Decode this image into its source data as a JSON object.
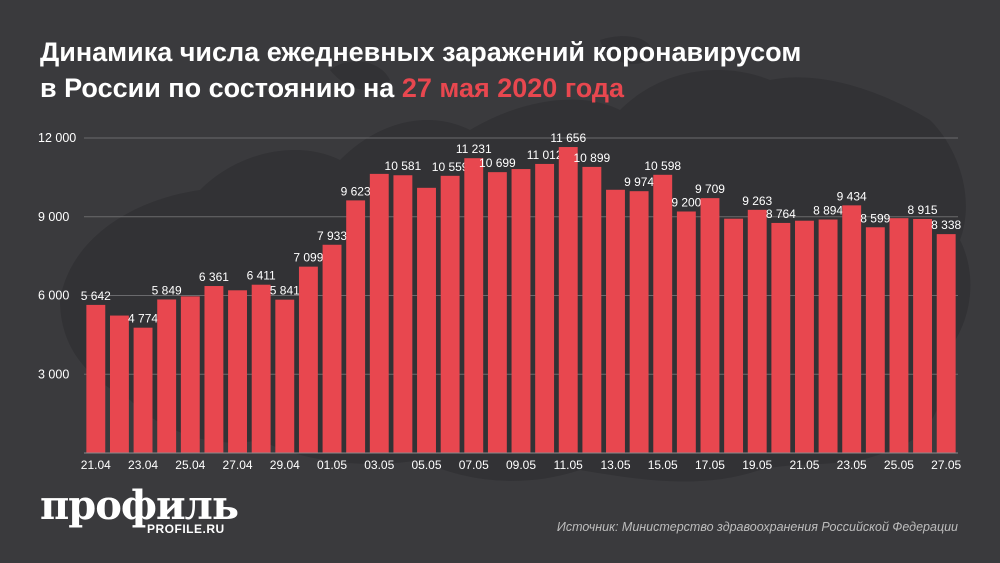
{
  "header": {
    "title_main": "Динамика числа ежедневных заражений коронавирусом",
    "title_line2": "в России по состоянию на ",
    "title_date": "27 мая 2020 года"
  },
  "branding": {
    "logo_text": "профиль",
    "logo_sub": "PROFILE.RU"
  },
  "footer": {
    "source": "Источник: Министерство здравоохранения Российской Федерации"
  },
  "colors": {
    "background": "#3a3a3d",
    "bar": "#e8474f",
    "accent": "#e8474f",
    "gridline": "#6a6a6d",
    "text": "#ffffff"
  },
  "chart_data": {
    "type": "bar",
    "title": "",
    "xlabel": "",
    "ylabel": "",
    "ylim": [
      0,
      12000
    ],
    "yticks": [
      3000,
      6000,
      9000,
      12000
    ],
    "ytick_labels": [
      "3 000",
      "6 000",
      "9 000",
      "12 000"
    ],
    "grid": true,
    "categories": [
      "21.04",
      "22.04",
      "23.04",
      "24.04",
      "25.04",
      "26.04",
      "27.04",
      "28.04",
      "29.04",
      "30.04",
      "01.05",
      "02.05",
      "03.05",
      "04.05",
      "05.05",
      "06.05",
      "07.05",
      "08.05",
      "09.05",
      "10.05",
      "11.05",
      "12.05",
      "13.05",
      "14.05",
      "15.05",
      "16.05",
      "17.05",
      "18.05",
      "19.05",
      "20.05",
      "21.05",
      "22.05",
      "23.05",
      "24.05",
      "25.05",
      "26.05",
      "27.05"
    ],
    "values": [
      5642,
      5236,
      4774,
      5849,
      5966,
      6361,
      6198,
      6411,
      5841,
      7099,
      7933,
      9623,
      10633,
      10581,
      10102,
      10559,
      11231,
      10699,
      10817,
      11012,
      11656,
      10899,
      10028,
      9974,
      10598,
      9200,
      9709,
      8926,
      9263,
      8764,
      8849,
      8894,
      9434,
      8599,
      8946,
      8915,
      8338
    ],
    "labels": [
      "5 642",
      "",
      "4 774",
      "5 849",
      "",
      "6 361",
      "",
      "6 411",
      "5 841",
      "7 099",
      "7 933",
      "9 623",
      "",
      "10 581",
      "",
      "10 559",
      "11 231",
      "10 699",
      "",
      "11 012",
      "11 656",
      "10 899",
      "",
      "9 974",
      "10 598",
      "9 200",
      "9 709",
      "",
      "9 263",
      "8 764",
      "",
      "8 894",
      "9 434",
      "8 599",
      "",
      "8 915",
      "8 338"
    ],
    "xtick_labels": [
      "21.04",
      "",
      "23.04",
      "",
      "25.04",
      "",
      "27.04",
      "",
      "29.04",
      "",
      "01.05",
      "",
      "03.05",
      "",
      "05.05",
      "",
      "07.05",
      "",
      "09.05",
      "",
      "11.05",
      "",
      "13.05",
      "",
      "15.05",
      "",
      "17.05",
      "",
      "19.05",
      "",
      "21.05",
      "",
      "23.05",
      "",
      "25.05",
      "",
      "27.05"
    ]
  }
}
